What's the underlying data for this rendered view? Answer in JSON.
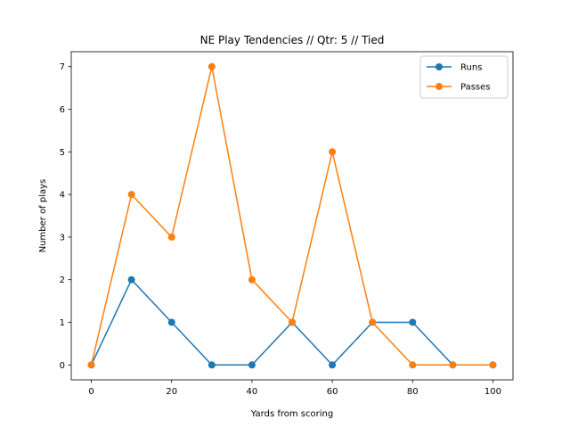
{
  "chart_data": {
    "type": "line",
    "title": "NE Play Tendencies // Qtr: 5 // Tied",
    "xlabel": "Yards from scoring",
    "ylabel": "Number of plays",
    "x": [
      0,
      10,
      20,
      30,
      40,
      50,
      60,
      70,
      80,
      90,
      100
    ],
    "xlim": [
      -5,
      105
    ],
    "ylim": [
      -0.35,
      7.35
    ],
    "xticks": [
      0,
      20,
      40,
      60,
      80,
      100
    ],
    "yticks": [
      0,
      1,
      2,
      3,
      4,
      5,
      6,
      7
    ],
    "grid": false,
    "legend_position": "top-right",
    "series": [
      {
        "name": "Runs",
        "color": "#1f77b4",
        "values": [
          0,
          2,
          1,
          0,
          0,
          1,
          0,
          1,
          1,
          0,
          0
        ]
      },
      {
        "name": "Passes",
        "color": "#ff7f0e",
        "values": [
          0,
          4,
          3,
          7,
          2,
          1,
          5,
          1,
          0,
          0,
          0
        ]
      }
    ]
  }
}
